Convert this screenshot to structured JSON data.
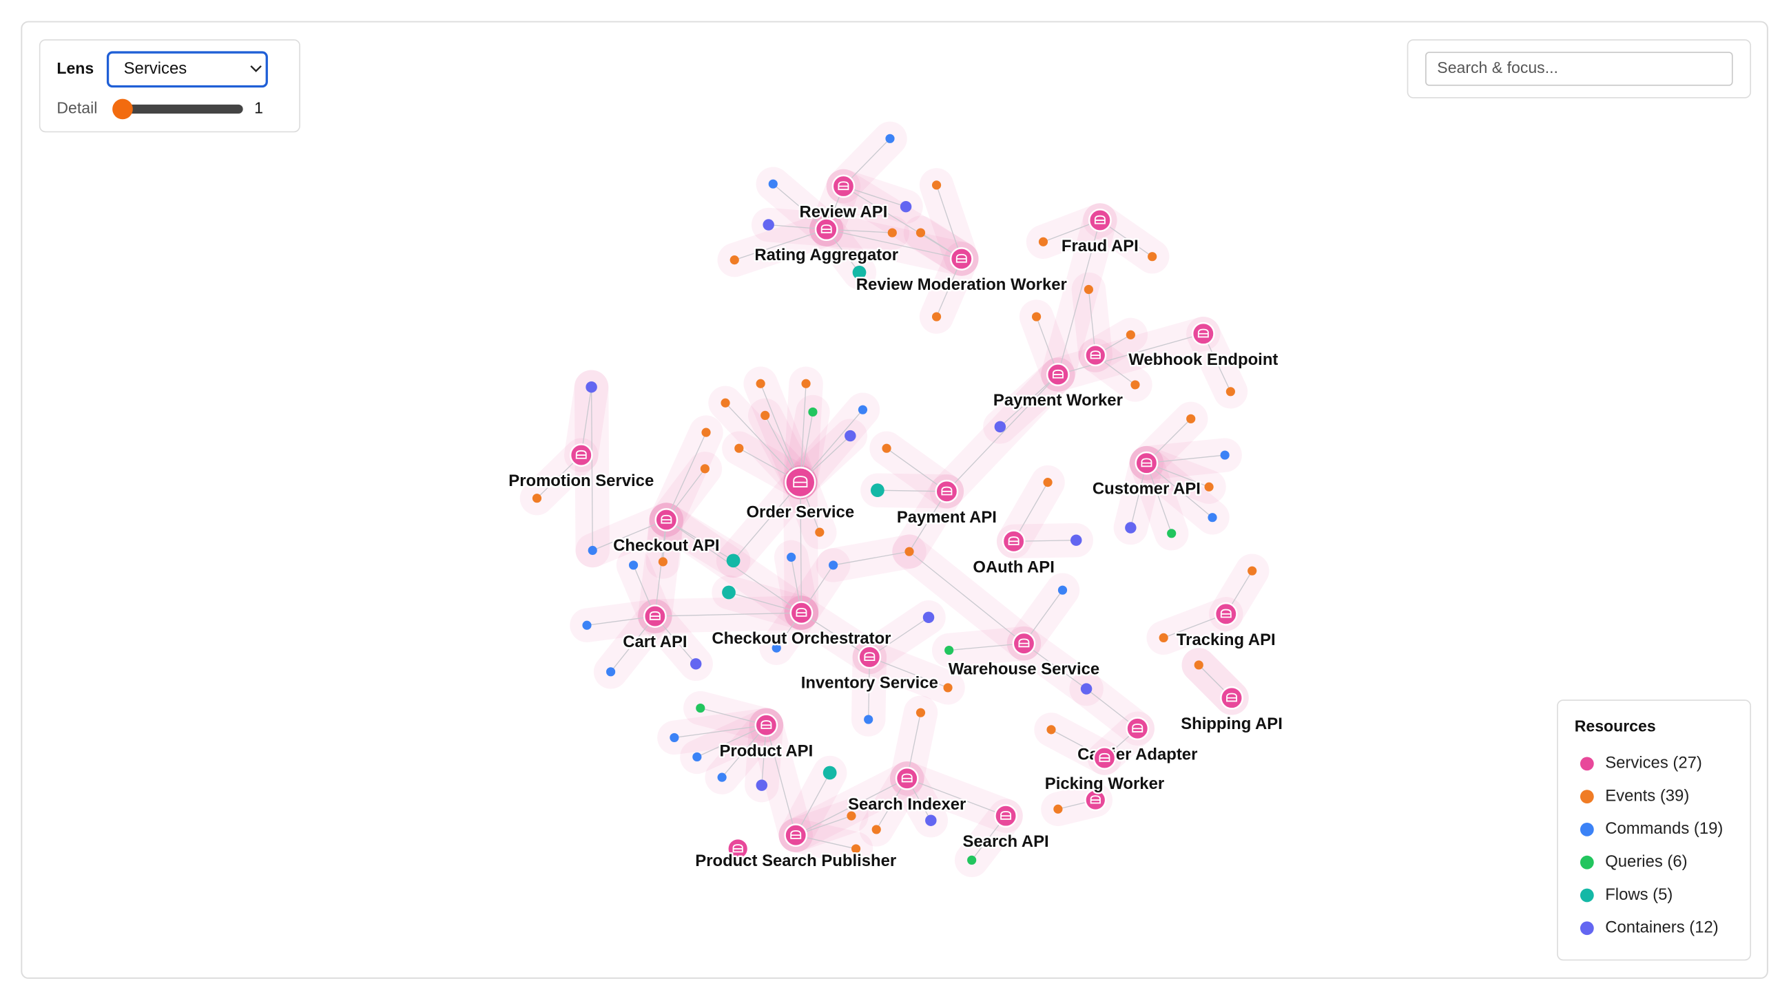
{
  "controls": {
    "lens_label": "Lens",
    "lens_value": "Services",
    "detail_label": "Detail",
    "detail_value": "1"
  },
  "search": {
    "placeholder": "Search & focus..."
  },
  "legend": {
    "title": "Resources",
    "items": [
      {
        "label": "Services (27)",
        "color": "#e8489a"
      },
      {
        "label": "Events (39)",
        "color": "#f07c25"
      },
      {
        "label": "Commands (19)",
        "color": "#3b82f6"
      },
      {
        "label": "Queries (6)",
        "color": "#22c55e"
      },
      {
        "label": "Flows (5)",
        "color": "#14b8a6"
      },
      {
        "label": "Containers (12)",
        "color": "#6366f1"
      }
    ]
  },
  "graph": {
    "nodes": [
      {
        "label": "Review API"
      },
      {
        "label": "Rating Aggregator"
      },
      {
        "label": "Review Moderation Worker"
      },
      {
        "label": "Fraud API"
      },
      {
        "label": "Webhook Endpoint"
      },
      {
        "label": "Payment Worker"
      },
      {
        "label": "Promotion Service"
      },
      {
        "label": "Order Service"
      },
      {
        "label": "Payment API"
      },
      {
        "label": "Customer API"
      },
      {
        "label": "OAuth API"
      },
      {
        "label": "Checkout API"
      },
      {
        "label": "Cart API"
      },
      {
        "label": "Checkout Orchestrator"
      },
      {
        "label": "Inventory Service"
      },
      {
        "label": "Warehouse Service"
      },
      {
        "label": "Tracking API"
      },
      {
        "label": "Shipping API"
      },
      {
        "label": "Carrier Adapter"
      },
      {
        "label": "Picking Worker"
      },
      {
        "label": "Product API"
      },
      {
        "label": "Search Indexer"
      },
      {
        "label": "Search API"
      },
      {
        "label": "Product Search Publisher"
      }
    ]
  }
}
